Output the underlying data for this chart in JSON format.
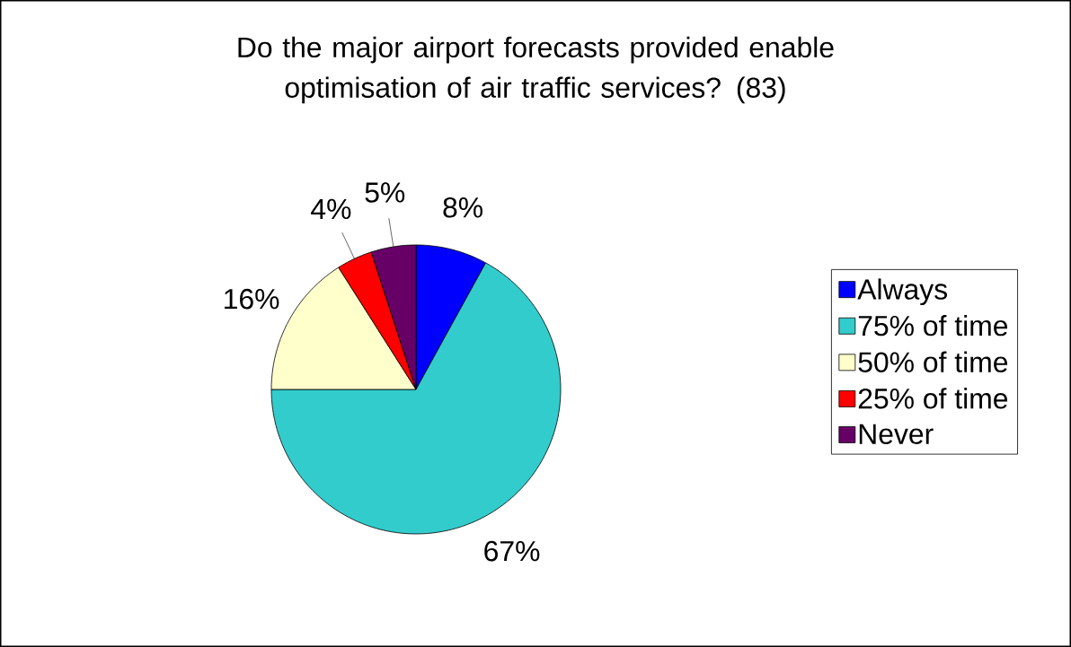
{
  "chart_data": {
    "type": "pie",
    "title": "Do the major airport forecasts provided enable optimisation of air traffic services? (83)",
    "categories": [
      "Always",
      "75% of time",
      "50% of time",
      "25% of time",
      "Never"
    ],
    "values": [
      8,
      67,
      16,
      4,
      5
    ],
    "value_labels": [
      "8%",
      "67%",
      "16%",
      "4%",
      "5%"
    ],
    "colors": [
      "#0000ff",
      "#33cccc",
      "#ffffcc",
      "#ff0000",
      "#660066"
    ],
    "legend": "right"
  }
}
